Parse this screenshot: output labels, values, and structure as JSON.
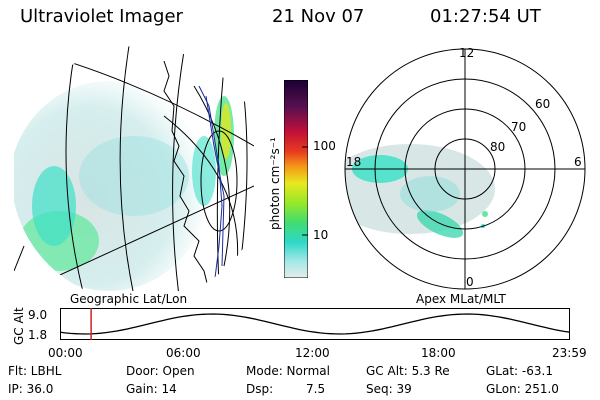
{
  "header": {
    "instrument": "Ultraviolet Imager",
    "date": "21 Nov 07",
    "time": "01:27:54 UT"
  },
  "geographic_panel": {
    "label": "Geographic Lat/Lon"
  },
  "colorbar": {
    "unit_label": "photon cm⁻²s⁻¹",
    "ticks": [
      "100",
      "10"
    ]
  },
  "polar_panel": {
    "label": "Apex MLat/MLT",
    "mlt_labels": {
      "top": "12",
      "left": "18",
      "right": "6",
      "bottom": "0"
    },
    "lat_labels": [
      "60",
      "70",
      "80"
    ]
  },
  "altitude_strip": {
    "ylabel": "GC Alt",
    "ymax": "9.0",
    "ymin": "1.8",
    "time_ticks": [
      "00:00",
      "06:00",
      "12:00",
      "18:00",
      "23:59"
    ],
    "current_time_fraction": 0.061
  },
  "footer": {
    "flt": "Flt: LBHL",
    "door": "Door: Open",
    "mode": "Mode: Normal",
    "gc_alt": "GC Alt: 5.3 Re",
    "glat": "GLat: -63.1",
    "ip": "IP: 36.0",
    "gain": "Gain: 14",
    "dsp_label": "Dsp:",
    "dsp_value": "7.5",
    "seq": "Seq: 39",
    "glon": "GLon: 251.0"
  },
  "colors": {
    "aurora_low": "#3fe0c8",
    "aurora_mid": "#66e8a0",
    "aurora_high": "#c8e83c",
    "background_glow": "#d8e4e4",
    "marker": "#cc2222"
  }
}
